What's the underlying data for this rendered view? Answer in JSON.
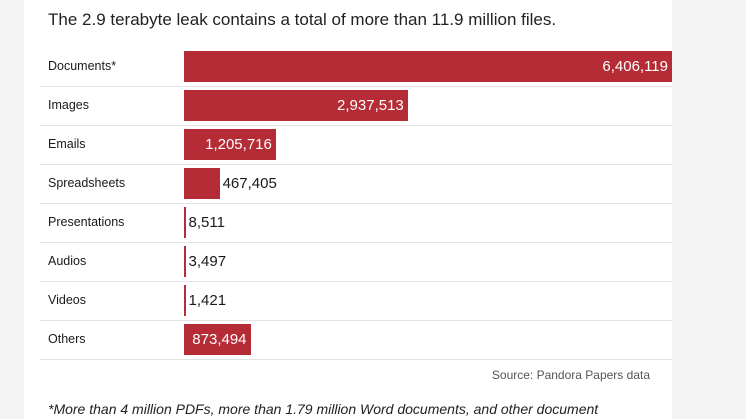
{
  "headline": "The 2.9 terabyte leak contains a total of more than 11.9 million files.",
  "chart_data": {
    "type": "bar",
    "orientation": "horizontal",
    "categories": [
      "Documents*",
      "Images",
      "Emails",
      "Spreadsheets",
      "Presentations",
      "Audios",
      "Videos",
      "Others"
    ],
    "values": [
      6406119,
      2937513,
      1205716,
      467405,
      8511,
      3497,
      1421,
      873494
    ],
    "value_labels": [
      "6,406,119",
      "2,937,513",
      "1,205,716",
      "467,405",
      "8,511",
      "3,497",
      "1,421",
      "873,494"
    ],
    "xlim": [
      0,
      6406119
    ],
    "bar_color": "#b52c37",
    "grid": false
  },
  "source": "Source: Pandora Papers data",
  "footnote": "*More than 4 million PDFs, more than 1.79 million Word documents, and other document"
}
